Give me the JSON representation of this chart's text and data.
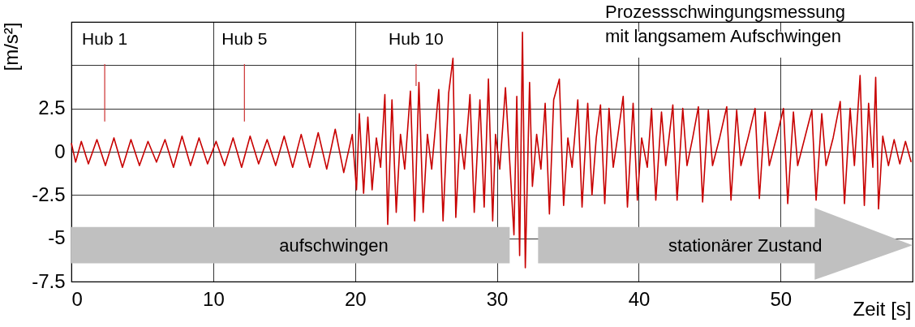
{
  "chart_data": {
    "type": "line",
    "title": "Prozessschwingungsmessung\nmit langsamem Aufschwingen",
    "xlabel": "Zeit [s]",
    "ylabel": "[m/s²]",
    "x": [
      0,
      0.3,
      0.7,
      1.2,
      1.8,
      2.4,
      3,
      3.6,
      4.2,
      4.8,
      5.4,
      6,
      6.6,
      7.2,
      7.8,
      8.4,
      9,
      9.6,
      10.2,
      10.8,
      11.4,
      12,
      12.6,
      13.2,
      13.8,
      14.4,
      15,
      15.6,
      16.2,
      16.8,
      17.4,
      18,
      18.6,
      19.2,
      19.8,
      20.1,
      20.3,
      20.6,
      20.9,
      21.2,
      21.5,
      21.8,
      22.1,
      22.3,
      22.6,
      22.9,
      23.2,
      23.5,
      23.9,
      24.2,
      24.5,
      24.8,
      25.1,
      25.4,
      25.9,
      26.2,
      26.6,
      26.9,
      27.1,
      27.4,
      27.7,
      28.1,
      28.4,
      28.8,
      29.1,
      29.4,
      29.7,
      29.9,
      30.2,
      30.6,
      31.2,
      31.4,
      31.6,
      31.8,
      32.0,
      32.3,
      32.5,
      32.8,
      33.1,
      33.4,
      33.7,
      34.0,
      34.4,
      34.7,
      35.0,
      35.3,
      35.7,
      36.0,
      36.4,
      36.7,
      37.0,
      37.3,
      37.6,
      37.9,
      38.2,
      38.5,
      38.9,
      39.2,
      39.6,
      39.9,
      40.2,
      40.6,
      40.9,
      41.2,
      41.6,
      41.9,
      42.4,
      42.7,
      43.1,
      43.4,
      43.8,
      44.2,
      44.5,
      44.9,
      45.2,
      45.7,
      46.2,
      46.5,
      46.9,
      47.2,
      47.7,
      48.2,
      48.5,
      48.9,
      49.2,
      49.7,
      50.2,
      50.5,
      50.9,
      51.2,
      51.7,
      52.2,
      52.5,
      52.9,
      53.2,
      53.7,
      54.2,
      54.5,
      54.9,
      55.2,
      55.6,
      55.9,
      56.2,
      56.5,
      56.7,
      56.9,
      57.2,
      57.6,
      58.0,
      58.4,
      58.8,
      59.2
    ],
    "series": [
      {
        "color": "#c80000",
        "values": [
          0.5,
          -0.6,
          0.6,
          -0.7,
          0.7,
          -0.8,
          0.8,
          -0.9,
          0.7,
          -0.8,
          0.6,
          -0.6,
          0.7,
          -0.9,
          0.9,
          -0.8,
          0.8,
          -0.7,
          0.6,
          -0.8,
          0.8,
          -0.9,
          0.9,
          -0.7,
          0.7,
          -0.8,
          0.9,
          -0.9,
          1.0,
          -0.9,
          1.1,
          -1.0,
          1.3,
          -1.2,
          1.0,
          -2.2,
          2.2,
          -2.4,
          2.0,
          -2.2,
          0.8,
          -0.9,
          3.3,
          -4.2,
          3.0,
          -3.5,
          1.0,
          -1.0,
          3.5,
          -4.0,
          4.0,
          -3.5,
          1.0,
          -1.0,
          3.6,
          -4.0,
          3.4,
          5.4,
          -3.8,
          1.0,
          -1.0,
          3.3,
          -3.5,
          3.0,
          -3.2,
          4.2,
          -4.0,
          1.0,
          -1.0,
          3.7,
          -4.8,
          3.2,
          -6.0,
          6.9,
          -6.7,
          4.0,
          -2.0,
          1.0,
          -1.0,
          2.8,
          -3.6,
          3.0,
          4.2,
          -3.1,
          0.8,
          -0.9,
          3.0,
          -3.2,
          2.8,
          -2.5,
          0.8,
          2.7,
          -3.0,
          2.5,
          -0.9,
          0.8,
          3.2,
          -3.2,
          2.8,
          -2.8,
          0.8,
          -0.9,
          2.5,
          -2.8,
          2.3,
          -0.8,
          2.7,
          -2.8,
          2.5,
          -0.8,
          0.8,
          2.6,
          -2.9,
          2.4,
          -0.8,
          0.8,
          2.6,
          -2.8,
          2.4,
          -0.8,
          0.8,
          2.5,
          -2.7,
          2.3,
          -0.8,
          0.8,
          2.5,
          -3.0,
          2.3,
          -0.8,
          0.8,
          2.4,
          -2.8,
          2.2,
          -0.8,
          0.8,
          2.9,
          -3.0,
          2.5,
          -0.8,
          4.4,
          -3.1,
          2.8,
          -0.9,
          4.3,
          -3.3,
          0.9,
          -0.8,
          0.7,
          -0.7,
          0.6,
          -0.6
        ]
      }
    ],
    "xlim": [
      0,
      59.3
    ],
    "xticks": [
      0,
      10,
      20,
      30,
      40,
      50
    ],
    "ylim": [
      -7.5,
      7.5
    ],
    "yticks": [
      -7.5,
      -5,
      -2.5,
      0,
      2.5,
      {
        "value": 5,
        "label": null
      },
      {
        "value": 7.5,
        "label": null
      }
    ],
    "grid": true,
    "line_style": "solid",
    "marker": "none",
    "annotations": [
      "Hub 1",
      "Hub 5",
      {
        "text": "Hub 10",
        "x": 24.3,
        "y": 3.8
      },
      "aufschwingen",
      "stationärer Zustand"
    ]
  }
}
